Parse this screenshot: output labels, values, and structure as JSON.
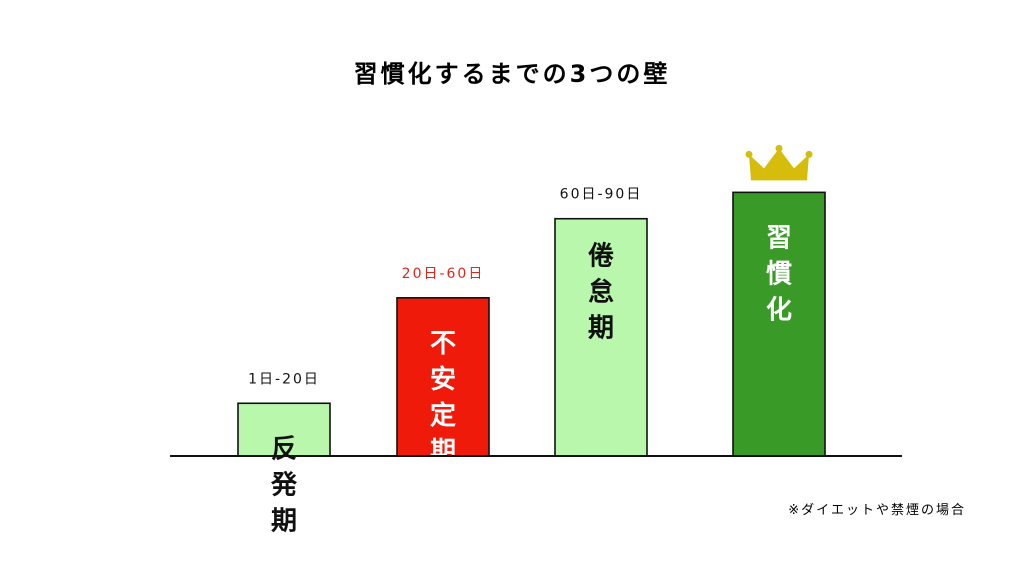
{
  "chart_data": {
    "type": "bar",
    "title": "習慣化するまでの3つの壁",
    "categories": [
      "反発期",
      "不安定期",
      "倦怠期",
      "習慣化"
    ],
    "ranges": [
      "1日-20日",
      "20日-60日",
      "60日-90日",
      ""
    ],
    "values": [
      20,
      60,
      90,
      100
    ],
    "ylim": [
      0,
      110
    ],
    "bar_colors": [
      "#b9f7ad",
      "#f01a0a",
      "#b9f7ad",
      "#3a9a28"
    ],
    "range_colors": [
      "#111111",
      "#e2261a",
      "#111111",
      "#111111"
    ],
    "label_colors": [
      "#111111",
      "#ffffff",
      "#111111",
      "#ffffff"
    ],
    "crown_color": "#d6bd0c",
    "crown_on": "習慣化",
    "grid": false,
    "note": "※ダイエットや禁煙の場合"
  }
}
